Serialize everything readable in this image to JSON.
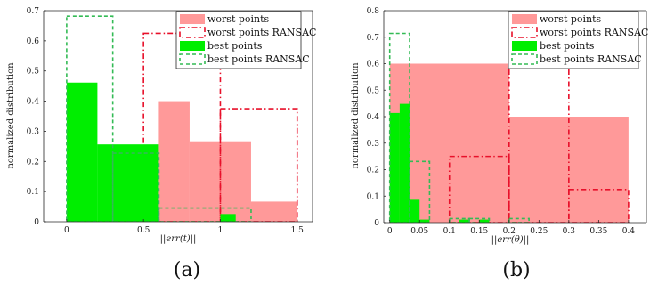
{
  "chart_data": [
    {
      "type": "bar",
      "caption": "(a)",
      "xlabel": "||err(t)||",
      "ylabel": "normalized distribution",
      "xlim": [
        -0.15,
        1.6
      ],
      "ylim": [
        0,
        0.7
      ],
      "xticks": [
        "0",
        "0.5",
        "1",
        "1.5"
      ],
      "xtick_values": [
        0,
        0.5,
        1,
        1.5
      ],
      "yticks": [
        "0",
        "0.1",
        "0.2",
        "0.3",
        "0.4",
        "0.5",
        "0.6",
        "0.7"
      ],
      "ytick_values": [
        0,
        0.1,
        0.2,
        0.3,
        0.4,
        0.5,
        0.6,
        0.7
      ],
      "legend_position": "top-right",
      "legend": [
        "worst points",
        "worst points RANSAC",
        "best points",
        "best points RANSAC"
      ],
      "series": [
        {
          "name": "worst points",
          "style": "filled",
          "color": "#ff9999",
          "bins": [
            [
              0.6,
              0.8,
              0.4
            ],
            [
              0.8,
              1.0,
              0.2667
            ],
            [
              1.0,
              1.2,
              0.2667
            ],
            [
              1.2,
              1.5,
              0.0667
            ]
          ]
        },
        {
          "name": "worst points RANSAC",
          "style": "dashdot",
          "color": "#e8102a",
          "bins": [
            [
              0.5,
              1.0,
              0.625
            ],
            [
              1.0,
              1.5,
              0.375
            ]
          ]
        },
        {
          "name": "best points",
          "style": "filled",
          "color": "#00ee00",
          "bins": [
            [
              0.0,
              0.2,
              0.4615
            ],
            [
              0.2,
              0.6,
              0.2564
            ],
            [
              1.0,
              1.1,
              0.0256
            ]
          ]
        },
        {
          "name": "best points RANSAC",
          "style": "dashed",
          "color": "#33bb55",
          "bins": [
            [
              0.0,
              0.3,
              0.6818
            ],
            [
              0.3,
              0.6,
              0.2273
            ],
            [
              0.6,
              1.2,
              0.0455
            ]
          ]
        }
      ]
    },
    {
      "type": "bar",
      "caption": "(b)",
      "xlabel": "||err(θ)||",
      "ylabel": "normalized distribution",
      "xlim": [
        -0.01,
        0.43
      ],
      "ylim": [
        0,
        0.8
      ],
      "xticks": [
        "0",
        "0.05",
        "0.1",
        "0.15",
        "0.2",
        "0.25",
        "0.3",
        "0.35",
        "0.4"
      ],
      "xtick_values": [
        0,
        0.05,
        0.1,
        0.15,
        0.2,
        0.25,
        0.3,
        0.35,
        0.4
      ],
      "yticks": [
        "0",
        "0.1",
        "0.2",
        "0.3",
        "0.4",
        "0.5",
        "0.6",
        "0.7",
        "0.8"
      ],
      "ytick_values": [
        0,
        0.1,
        0.2,
        0.3,
        0.4,
        0.5,
        0.6,
        0.7,
        0.8
      ],
      "legend_position": "top-right",
      "legend": [
        "worst points",
        "worst points RANSAC",
        "best points",
        "best points RANSAC"
      ],
      "series": [
        {
          "name": "worst points",
          "style": "filled",
          "color": "#ff9999",
          "bins": [
            [
              0.0,
              0.2,
              0.6
            ],
            [
              0.2,
              0.4,
              0.4
            ]
          ]
        },
        {
          "name": "worst points RANSAC",
          "style": "dashdot",
          "color": "#e8102a",
          "bins": [
            [
              0.0,
              0.1,
              0.0
            ],
            [
              0.1,
              0.2,
              0.25
            ],
            [
              0.2,
              0.3,
              0.625
            ],
            [
              0.3,
              0.4,
              0.125
            ]
          ]
        },
        {
          "name": "best points",
          "style": "filled",
          "color": "#00ee00",
          "bins": [
            [
              0.0,
              0.0167,
              0.4138
            ],
            [
              0.0167,
              0.0333,
              0.4483
            ],
            [
              0.0333,
              0.05,
              0.0862
            ],
            [
              0.05,
              0.0667,
              0.0115
            ],
            [
              0.1167,
              0.1333,
              0.0115
            ],
            [
              0.15,
              0.1667,
              0.0115
            ]
          ]
        },
        {
          "name": "best points RANSAC",
          "style": "dashed",
          "color": "#33bb55",
          "bins": [
            [
              0.0,
              0.0167,
              0.0
            ],
            [
              0.0,
              0.0333,
              0.7143
            ],
            [
              0.0333,
              0.0667,
              0.2308
            ],
            [
              0.0667,
              0.1,
              0.0
            ],
            [
              0.1,
              0.1333,
              0.0154
            ],
            [
              0.1333,
              0.1667,
              0.0154
            ],
            [
              0.2,
              0.2333,
              0.0154
            ]
          ]
        }
      ]
    }
  ]
}
